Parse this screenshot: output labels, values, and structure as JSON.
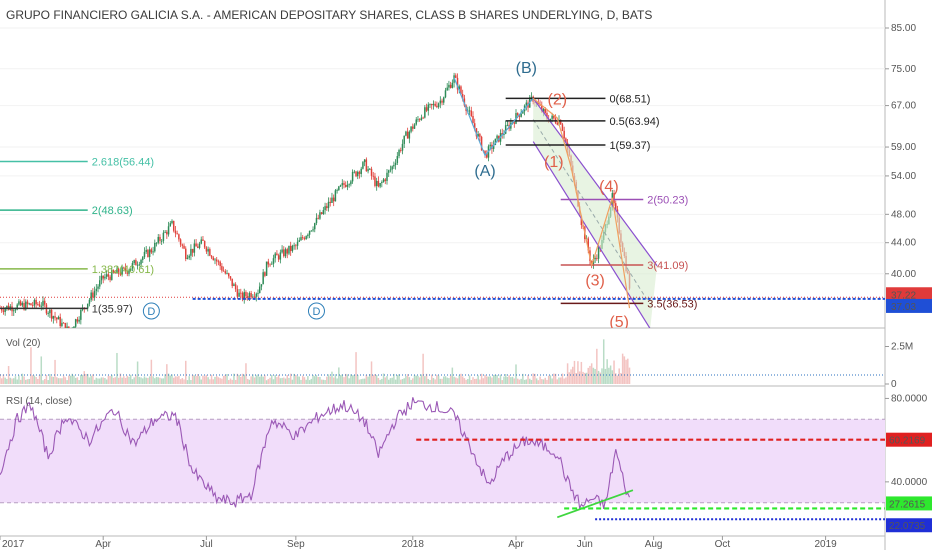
{
  "chart_data": {
    "type": "candlestick",
    "title": "GRUPO FINANCIERO GALICIA S.A. - AMERICAN DEPOSITARY SHARES, CLASS B SHARES UNDERLYING, D, BATS",
    "price_axis": {
      "ticks": [
        "85.00",
        "75.00",
        "67.00",
        "59.00",
        "54.00",
        "48.00",
        "44.00",
        "40.00"
      ],
      "tick_values": [
        85,
        75,
        67,
        59,
        54,
        48,
        44,
        40
      ],
      "ylim": [
        34.5,
        85
      ],
      "scale": "log"
    },
    "time_axis": {
      "labels": [
        "2017",
        "Apr",
        "Jul",
        "Sep",
        "2018",
        "Apr",
        "Jun",
        "Aug",
        "Oct",
        "2019"
      ],
      "label_pos": [
        0,
        3,
        6,
        8.6,
        12,
        15,
        17,
        19,
        21,
        24
      ]
    },
    "price_key_points": [
      {
        "t": 0.0,
        "p": 36.0
      },
      {
        "t": 1.2,
        "p": 36.5
      },
      {
        "t": 2.0,
        "p": 33.5
      },
      {
        "t": 2.6,
        "p": 37.0
      },
      {
        "t": 3.0,
        "p": 39.5
      },
      {
        "t": 3.7,
        "p": 40.5
      },
      {
        "t": 4.4,
        "p": 43.0
      },
      {
        "t": 5.0,
        "p": 46.5
      },
      {
        "t": 5.4,
        "p": 42.5
      },
      {
        "t": 5.9,
        "p": 44.0
      },
      {
        "t": 6.4,
        "p": 41.0
      },
      {
        "t": 7.0,
        "p": 37.2
      },
      {
        "t": 7.5,
        "p": 38.0
      },
      {
        "t": 7.8,
        "p": 41.5
      },
      {
        "t": 8.6,
        "p": 43.5
      },
      {
        "t": 9.2,
        "p": 47.0
      },
      {
        "t": 9.9,
        "p": 52.0
      },
      {
        "t": 10.6,
        "p": 56.0
      },
      {
        "t": 11.0,
        "p": 52.0
      },
      {
        "t": 11.4,
        "p": 55.5
      },
      {
        "t": 11.8,
        "p": 61.0
      },
      {
        "t": 12.3,
        "p": 65.5
      },
      {
        "t": 12.8,
        "p": 68.0
      },
      {
        "t": 13.2,
        "p": 73.0
      },
      {
        "t": 13.6,
        "p": 66.0
      },
      {
        "t": 14.1,
        "p": 57.5
      },
      {
        "t": 14.6,
        "p": 61.5
      },
      {
        "t": 15.1,
        "p": 65.5
      },
      {
        "t": 15.5,
        "p": 68.5
      },
      {
        "t": 15.9,
        "p": 64.5
      },
      {
        "t": 16.3,
        "p": 64.0
      },
      {
        "t": 16.6,
        "p": 55.5
      },
      {
        "t": 16.9,
        "p": 47.0
      },
      {
        "t": 17.2,
        "p": 41.0
      },
      {
        "t": 17.5,
        "p": 44.0
      },
      {
        "t": 17.8,
        "p": 50.5
      },
      {
        "t": 18.05,
        "p": 44.5
      },
      {
        "t": 18.3,
        "p": 38.5
      }
    ],
    "price_labels": [
      {
        "text": "37.22",
        "value": 37.22,
        "color": "#e03a3a"
      },
      {
        "text": "37.03",
        "value": 37.03,
        "color": "#1f4fd6"
      }
    ],
    "fib_retracement": [
      {
        "text": "0(68.51)",
        "value": 68.51,
        "color": "#222222"
      },
      {
        "text": "0.5(63.94)",
        "value": 63.94,
        "color": "#222222"
      },
      {
        "text": "1(59.37)",
        "value": 59.37,
        "color": "#222222"
      },
      {
        "text": "2(50.23)",
        "value": 50.23,
        "color": "#9b4fb5"
      },
      {
        "text": "3(41.09)",
        "value": 41.09,
        "color": "#c75353"
      },
      {
        "text": "3.5(36.53)",
        "value": 36.53,
        "color": "#6a1a1a"
      }
    ],
    "fib_extension": [
      {
        "text": "2.618(56.44)",
        "value": 56.44,
        "color": "#45c0a6"
      },
      {
        "text": "2(48.63)",
        "value": 48.63,
        "color": "#2fb38a"
      },
      {
        "text": "1.382(40.61)",
        "value": 40.61,
        "color": "#86b84a"
      },
      {
        "text": "1(35.97)",
        "value": 35.97,
        "color": "#333333"
      }
    ],
    "wave_labels": [
      {
        "text": "(B)",
        "t": 15.3,
        "p": 74.0,
        "color": "#2e6c8f"
      },
      {
        "text": "(A)",
        "t": 14.1,
        "p": 54.0,
        "color": "#2e6c8f"
      },
      {
        "text": "(2)",
        "t": 16.2,
        "p": 67.2,
        "color": "#e0604a"
      },
      {
        "text": "(1)",
        "t": 16.1,
        "p": 55.5,
        "color": "#e0604a"
      },
      {
        "text": "(4)",
        "t": 17.7,
        "p": 51.5,
        "color": "#e0604a"
      },
      {
        "text": "(3)",
        "t": 17.3,
        "p": 38.6,
        "color": "#e0604a"
      },
      {
        "text": "(5)",
        "t": 18.0,
        "p": 34.0,
        "color": "#e0604a"
      }
    ],
    "dividend_markers": [
      {
        "text": "D",
        "t": 4.4
      },
      {
        "text": "D",
        "t": 9.2
      }
    ],
    "volume": {
      "label": "Vol (20)",
      "ticks": [
        "2.5M",
        "0"
      ],
      "tick_values": [
        2.5,
        0
      ],
      "ylim": [
        0,
        3.2
      ]
    },
    "rsi": {
      "label": "RSI (14, close)",
      "ticks": [
        "80.0000",
        "40.0000"
      ],
      "tick_values": [
        80,
        40
      ],
      "ylim": [
        15,
        85
      ],
      "upper_band": 70,
      "lower_band": 30,
      "key_points": [
        {
          "t": 0.0,
          "v": 45
        },
        {
          "t": 0.5,
          "v": 70
        },
        {
          "t": 0.9,
          "v": 77
        },
        {
          "t": 1.4,
          "v": 52
        },
        {
          "t": 1.9,
          "v": 72
        },
        {
          "t": 2.6,
          "v": 60
        },
        {
          "t": 3.3,
          "v": 75
        },
        {
          "t": 3.9,
          "v": 58
        },
        {
          "t": 4.5,
          "v": 70
        },
        {
          "t": 5.1,
          "v": 72
        },
        {
          "t": 5.6,
          "v": 45
        },
        {
          "t": 6.3,
          "v": 32
        },
        {
          "t": 6.8,
          "v": 30
        },
        {
          "t": 7.3,
          "v": 34
        },
        {
          "t": 7.9,
          "v": 70
        },
        {
          "t": 8.6,
          "v": 62
        },
        {
          "t": 9.3,
          "v": 72
        },
        {
          "t": 10.0,
          "v": 77
        },
        {
          "t": 10.6,
          "v": 69
        },
        {
          "t": 11.0,
          "v": 53
        },
        {
          "t": 11.5,
          "v": 70
        },
        {
          "t": 12.0,
          "v": 78
        },
        {
          "t": 12.7,
          "v": 76
        },
        {
          "t": 13.2,
          "v": 72
        },
        {
          "t": 13.7,
          "v": 56
        },
        {
          "t": 14.2,
          "v": 38
        },
        {
          "t": 14.7,
          "v": 52
        },
        {
          "t": 15.3,
          "v": 60
        },
        {
          "t": 15.8,
          "v": 57
        },
        {
          "t": 16.2,
          "v": 54
        },
        {
          "t": 16.5,
          "v": 40
        },
        {
          "t": 16.9,
          "v": 28
        },
        {
          "t": 17.2,
          "v": 32
        },
        {
          "t": 17.6,
          "v": 29
        },
        {
          "t": 17.9,
          "v": 55
        },
        {
          "t": 18.1,
          "v": 42
        },
        {
          "t": 18.3,
          "v": 31
        }
      ],
      "levels": [
        {
          "text": "60.2169",
          "value": 60.2169,
          "color": "#e02020"
        },
        {
          "text": "27.2615",
          "value": 27.2615,
          "color": "#2ee82e"
        },
        {
          "text": "22.0735",
          "value": 22.0735,
          "color": "#1f2fd6"
        }
      ]
    },
    "colors": {
      "up": "#2e8b57",
      "down": "#e0403a",
      "rsi_line": "#9b59b6",
      "rsi_band": "#f1ddfa",
      "channel_fill": "#d9ecd0",
      "channel_line": "#8a4fcf"
    }
  }
}
